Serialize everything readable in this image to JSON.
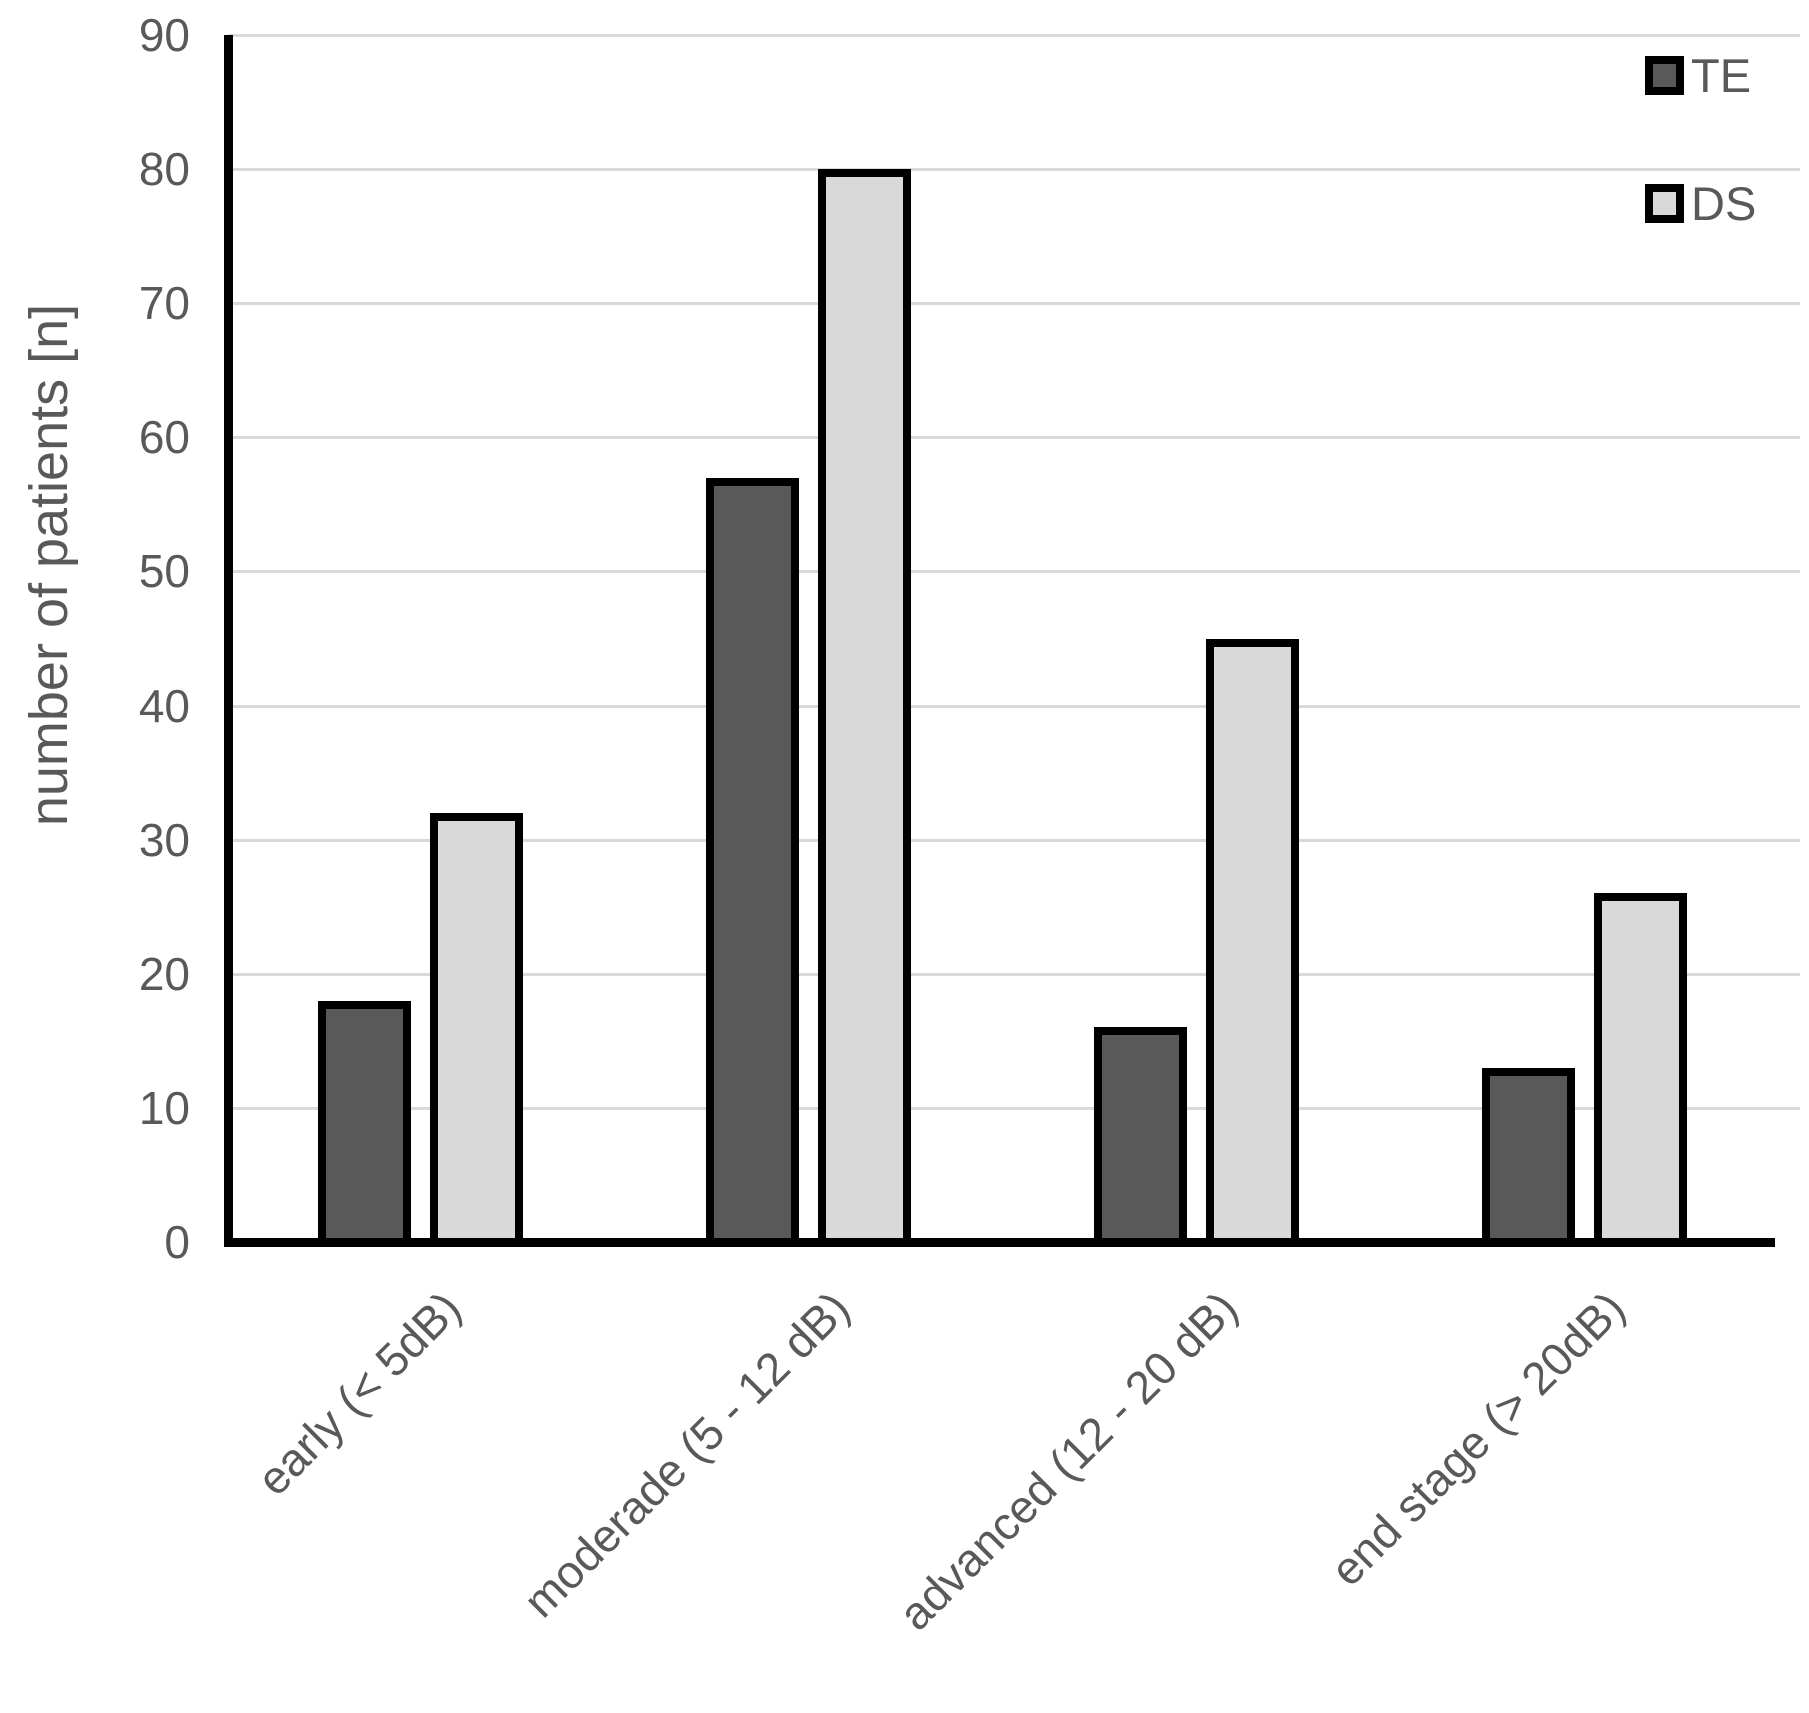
{
  "chart_data": {
    "type": "bar",
    "title": "",
    "categories": [
      "early (< 5dB)",
      "moderade (5 - 12 dB)",
      "advanced (12 - 20 dB)",
      "end stage (> 20dB)"
    ],
    "series": [
      {
        "name": "TE",
        "values": [
          18,
          57,
          16,
          13
        ],
        "fill": "#595959"
      },
      {
        "name": "DS",
        "values": [
          32,
          80,
          45,
          26
        ],
        "fill": "#d9d9d9"
      }
    ],
    "xlabel": "",
    "ylabel": "number of patients [n]",
    "ylim": [
      0,
      90
    ],
    "yticks": [
      0,
      10,
      20,
      30,
      40,
      50,
      60,
      70,
      80,
      90
    ],
    "grid": "horizontal",
    "legend_position": "top-right",
    "colors": {
      "bar_border": "#000000",
      "axis": "#000000",
      "gridline": "#d9d9d9",
      "text": "#595959"
    }
  }
}
